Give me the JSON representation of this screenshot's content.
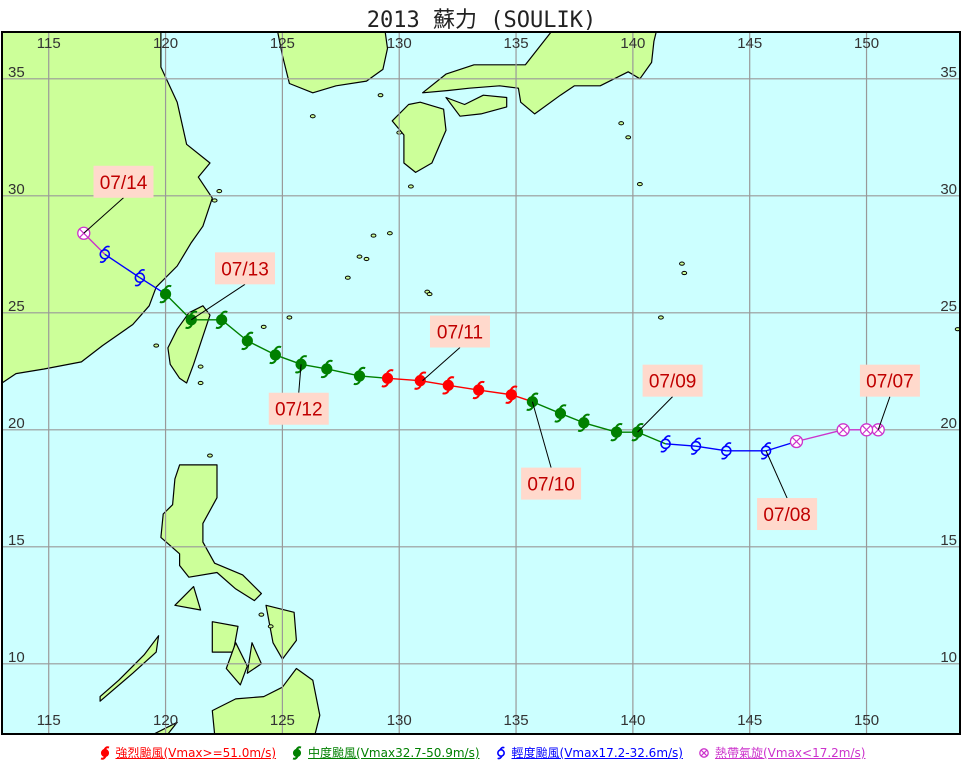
{
  "title": "2013 蘇力 (SOULIK)",
  "map": {
    "lon_range": [
      113,
      154
    ],
    "lat_range": [
      7,
      37
    ],
    "lon_ticks": [
      115,
      120,
      125,
      130,
      135,
      140,
      145,
      150
    ],
    "lat_ticks": [
      10,
      15,
      20,
      25,
      30,
      35
    ],
    "grid": true,
    "sea_color": "#ccffff",
    "land_color": "#ccff99",
    "grid_color": "#999999"
  },
  "categories": {
    "strong": {
      "label": "強烈颱風(Vmax>=51.0m/s)",
      "color": "#ff0000"
    },
    "moderate": {
      "label": "中度颱風(Vmax32.7-50.9m/s)",
      "color": "#008000"
    },
    "mild": {
      "label": "輕度颱風(Vmax17.2-32.6m/s)",
      "color": "#0000ff"
    },
    "depression": {
      "label": "熱帶氣旋(Vmax<17.2m/s)",
      "color": "#cc33cc"
    }
  },
  "track": [
    {
      "lon": 150.5,
      "lat": 20.0,
      "cat": "depression"
    },
    {
      "lon": 150.0,
      "lat": 20.0,
      "cat": "depression"
    },
    {
      "lon": 149.0,
      "lat": 20.0,
      "cat": "depression"
    },
    {
      "lon": 147.0,
      "lat": 19.5,
      "cat": "depression"
    },
    {
      "lon": 145.7,
      "lat": 19.1,
      "cat": "mild"
    },
    {
      "lon": 144.0,
      "lat": 19.1,
      "cat": "mild"
    },
    {
      "lon": 142.7,
      "lat": 19.3,
      "cat": "mild"
    },
    {
      "lon": 141.4,
      "lat": 19.4,
      "cat": "mild"
    },
    {
      "lon": 140.2,
      "lat": 19.9,
      "cat": "moderate"
    },
    {
      "lon": 139.3,
      "lat": 19.9,
      "cat": "moderate"
    },
    {
      "lon": 137.9,
      "lat": 20.3,
      "cat": "moderate"
    },
    {
      "lon": 136.9,
      "lat": 20.7,
      "cat": "moderate"
    },
    {
      "lon": 135.7,
      "lat": 21.2,
      "cat": "moderate"
    },
    {
      "lon": 134.8,
      "lat": 21.5,
      "cat": "strong"
    },
    {
      "lon": 133.4,
      "lat": 21.7,
      "cat": "strong"
    },
    {
      "lon": 132.1,
      "lat": 21.9,
      "cat": "strong"
    },
    {
      "lon": 130.9,
      "lat": 22.1,
      "cat": "strong"
    },
    {
      "lon": 129.5,
      "lat": 22.2,
      "cat": "strong"
    },
    {
      "lon": 128.3,
      "lat": 22.3,
      "cat": "moderate"
    },
    {
      "lon": 126.9,
      "lat": 22.6,
      "cat": "moderate"
    },
    {
      "lon": 125.8,
      "lat": 22.8,
      "cat": "moderate"
    },
    {
      "lon": 124.7,
      "lat": 23.2,
      "cat": "moderate"
    },
    {
      "lon": 123.5,
      "lat": 23.8,
      "cat": "moderate"
    },
    {
      "lon": 122.4,
      "lat": 24.7,
      "cat": "moderate"
    },
    {
      "lon": 121.1,
      "lat": 24.7,
      "cat": "moderate"
    },
    {
      "lon": 120.0,
      "lat": 25.8,
      "cat": "moderate"
    },
    {
      "lon": 118.9,
      "lat": 26.5,
      "cat": "mild"
    },
    {
      "lon": 117.4,
      "lat": 27.5,
      "cat": "mild"
    },
    {
      "lon": 116.5,
      "lat": 28.4,
      "cat": "depression"
    }
  ],
  "date_labels": [
    {
      "text": "07/07",
      "lon": 150.5,
      "lat": 20.0,
      "box_lon": 151.0,
      "box_lat": 22.1
    },
    {
      "text": "07/08",
      "lon": 145.7,
      "lat": 19.1,
      "box_lon": 146.6,
      "box_lat": 16.4
    },
    {
      "text": "07/09",
      "lon": 140.2,
      "lat": 19.9,
      "box_lon": 141.7,
      "box_lat": 22.1
    },
    {
      "text": "07/10",
      "lon": 135.7,
      "lat": 21.2,
      "box_lon": 136.5,
      "box_lat": 17.7
    },
    {
      "text": "07/11",
      "lon": 131.0,
      "lat": 22.1,
      "box_lon": 132.6,
      "box_lat": 24.2
    },
    {
      "text": "07/12",
      "lon": 125.8,
      "lat": 22.8,
      "box_lon": 125.7,
      "box_lat": 20.9
    },
    {
      "text": "07/13",
      "lon": 121.1,
      "lat": 24.7,
      "box_lon": 123.4,
      "box_lat": 26.9
    },
    {
      "text": "07/14",
      "lon": 116.5,
      "lat": 28.4,
      "box_lon": 118.2,
      "box_lat": 30.6
    }
  ],
  "land": [
    [
      [
        113,
        7.8
      ],
      [
        113,
        37
      ],
      [
        119.8,
        37
      ],
      [
        119.8,
        35.5
      ],
      [
        120.5,
        34
      ],
      [
        120.9,
        32.2
      ],
      [
        121.9,
        31.4
      ],
      [
        121.4,
        30.8
      ],
      [
        122.0,
        29.9
      ],
      [
        121.6,
        28.7
      ],
      [
        121.1,
        28.0
      ],
      [
        120.5,
        27.0
      ],
      [
        119.6,
        26.1
      ],
      [
        119.3,
        25.3
      ],
      [
        118.6,
        24.5
      ],
      [
        117.3,
        23.6
      ],
      [
        116.4,
        22.9
      ],
      [
        114.8,
        22.6
      ],
      [
        113.6,
        22.4
      ],
      [
        113.0,
        22.0
      ]
    ],
    [
      [
        121.6,
        25.3
      ],
      [
        121.9,
        24.9
      ],
      [
        121.5,
        23.7
      ],
      [
        121.2,
        22.8
      ],
      [
        120.9,
        22.0
      ],
      [
        120.6,
        22.2
      ],
      [
        120.2,
        22.8
      ],
      [
        120.1,
        23.5
      ],
      [
        120.5,
        24.3
      ],
      [
        121.0,
        25.0
      ]
    ],
    [
      [
        124.8,
        37
      ],
      [
        125.0,
        36.0
      ],
      [
        125.3,
        34.8
      ],
      [
        126.3,
        34.4
      ],
      [
        127.3,
        34.7
      ],
      [
        128.6,
        34.9
      ],
      [
        129.3,
        35.4
      ],
      [
        129.5,
        36.3
      ],
      [
        129.4,
        37
      ]
    ],
    [
      [
        130.9,
        34.0
      ],
      [
        131.9,
        33.7
      ],
      [
        132.0,
        32.8
      ],
      [
        131.4,
        31.4
      ],
      [
        130.7,
        31.0
      ],
      [
        130.2,
        31.4
      ],
      [
        130.2,
        32.6
      ],
      [
        129.7,
        33.2
      ],
      [
        130.4,
        33.9
      ]
    ],
    [
      [
        132.0,
        34.2
      ],
      [
        132.6,
        33.4
      ],
      [
        133.5,
        33.5
      ],
      [
        134.6,
        33.8
      ],
      [
        134.6,
        34.2
      ],
      [
        133.6,
        34.3
      ],
      [
        132.8,
        33.9
      ]
    ],
    [
      [
        131.0,
        34.4
      ],
      [
        132.1,
        34.5
      ],
      [
        133.0,
        34.6
      ],
      [
        134.3,
        34.7
      ],
      [
        135.1,
        34.6
      ],
      [
        135.2,
        34.0
      ],
      [
        135.8,
        33.5
      ],
      [
        136.9,
        34.3
      ],
      [
        137.5,
        34.7
      ],
      [
        138.6,
        34.7
      ],
      [
        139.2,
        35.0
      ],
      [
        139.8,
        35.3
      ],
      [
        140.3,
        35.0
      ],
      [
        140.8,
        35.7
      ],
      [
        140.9,
        36.6
      ],
      [
        141.0,
        37
      ],
      [
        136.5,
        37
      ],
      [
        135.4,
        35.6
      ],
      [
        133.2,
        35.6
      ],
      [
        132.0,
        35.2
      ]
    ],
    [
      [
        120.6,
        18.5
      ],
      [
        121.5,
        18.5
      ],
      [
        122.2,
        18.5
      ],
      [
        122.2,
        17.1
      ],
      [
        121.6,
        16.0
      ],
      [
        121.6,
        15.2
      ],
      [
        122.1,
        14.3
      ],
      [
        123.3,
        13.8
      ],
      [
        124.1,
        13.0
      ],
      [
        123.8,
        12.7
      ],
      [
        123.0,
        13.2
      ],
      [
        122.2,
        13.9
      ],
      [
        121.0,
        13.7
      ],
      [
        120.6,
        14.2
      ],
      [
        120.6,
        14.7
      ],
      [
        119.8,
        15.4
      ],
      [
        119.9,
        16.4
      ],
      [
        120.3,
        16.8
      ],
      [
        120.4,
        17.9
      ]
    ],
    [
      [
        124.3,
        12.5
      ],
      [
        125.5,
        12.2
      ],
      [
        125.6,
        11.0
      ],
      [
        125.0,
        10.2
      ],
      [
        124.6,
        10.9
      ]
    ],
    [
      [
        121.2,
        13.3
      ],
      [
        121.5,
        12.3
      ],
      [
        120.4,
        12.5
      ]
    ],
    [
      [
        122.0,
        11.8
      ],
      [
        123.1,
        11.6
      ],
      [
        122.9,
        10.5
      ],
      [
        122.0,
        10.5
      ]
    ],
    [
      [
        123.0,
        10.9
      ],
      [
        123.5,
        9.9
      ],
      [
        123.2,
        9.1
      ],
      [
        122.6,
        9.8
      ]
    ],
    [
      [
        123.7,
        10.9
      ],
      [
        124.1,
        10.0
      ],
      [
        123.5,
        9.6
      ]
    ],
    [
      [
        117.2,
        8.4
      ],
      [
        118.6,
        9.6
      ],
      [
        119.6,
        10.5
      ],
      [
        119.7,
        11.2
      ],
      [
        119.1,
        10.4
      ],
      [
        118.0,
        9.3
      ],
      [
        117.2,
        8.6
      ]
    ],
    [
      [
        122.0,
        8.0
      ],
      [
        123.0,
        8.5
      ],
      [
        124.2,
        8.6
      ],
      [
        125.0,
        9.0
      ],
      [
        125.6,
        9.8
      ],
      [
        126.3,
        9.3
      ],
      [
        126.6,
        7.8
      ],
      [
        126.4,
        7.0
      ],
      [
        124.0,
        7.0
      ],
      [
        122.1,
        7.0
      ]
    ],
    [
      [
        120.1,
        7.0
      ],
      [
        120.5,
        7.5
      ],
      [
        119.5,
        7.0
      ]
    ]
  ],
  "islands": [
    [
      126.3,
      33.4
    ],
    [
      128.3,
      27.4
    ],
    [
      128.9,
      28.3
    ],
    [
      129.6,
      28.4
    ],
    [
      127.8,
      26.5
    ],
    [
      130.5,
      30.4
    ],
    [
      124.2,
      24.4
    ],
    [
      125.3,
      24.8
    ],
    [
      139.5,
      33.1
    ],
    [
      139.8,
      32.5
    ],
    [
      140.3,
      30.5
    ],
    [
      142.1,
      27.1
    ],
    [
      142.2,
      26.7
    ],
    [
      141.2,
      24.8
    ],
    [
      131.2,
      25.9
    ],
    [
      131.3,
      25.8
    ],
    [
      153.9,
      24.3
    ],
    [
      122.1,
      29.8
    ],
    [
      122.3,
      30.2
    ],
    [
      119.6,
      23.6
    ],
    [
      121.5,
      22.7
    ],
    [
      121.5,
      22.0
    ],
    [
      121.9,
      18.9
    ],
    [
      124.1,
      12.1
    ],
    [
      124.5,
      11.6
    ],
    [
      128.6,
      27.3
    ],
    [
      130.0,
      32.7
    ],
    [
      129.2,
      34.3
    ]
  ]
}
